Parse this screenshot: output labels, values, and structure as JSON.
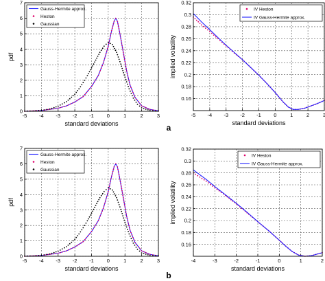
{
  "panel_labels": [
    "a",
    "b"
  ],
  "chart_data": [
    {
      "id": "a-pdf",
      "type": "line",
      "xlabel": "standard deviations",
      "ylabel": "pdf",
      "xlim": [
        -5,
        3
      ],
      "ylim": [
        0,
        7
      ],
      "xticks": [
        -5,
        -4,
        -3,
        -2,
        -1,
        0,
        1,
        2,
        3
      ],
      "yticks": [
        0,
        1,
        2,
        3,
        4,
        5,
        6,
        7
      ],
      "grid": true,
      "legend": {
        "position": "top-left",
        "entries": [
          "Gauss-Hermite approx.",
          "Heston",
          "Gaussian"
        ]
      },
      "series": [
        {
          "name": "Gauss-Hermite approx.",
          "style": "solid",
          "color": "#2020ff",
          "x": [
            -5,
            -4,
            -3,
            -2.5,
            -2,
            -1.5,
            -1,
            -0.6,
            -0.3,
            0,
            0.2,
            0.35,
            0.45,
            0.55,
            0.7,
            0.9,
            1.1,
            1.3,
            1.6,
            2,
            2.5,
            3
          ],
          "y": [
            0,
            0.05,
            0.2,
            0.35,
            0.6,
            0.95,
            1.6,
            2.3,
            3.1,
            4.2,
            5.2,
            5.8,
            6.0,
            5.8,
            5.0,
            3.8,
            2.6,
            1.7,
            0.9,
            0.35,
            0.12,
            0.03
          ]
        },
        {
          "name": "Heston",
          "style": "dots",
          "color": "#e0006a",
          "x": [
            -5,
            -4,
            -3,
            -2.5,
            -2,
            -1.5,
            -1,
            -0.6,
            -0.3,
            0,
            0.2,
            0.35,
            0.45,
            0.55,
            0.7,
            0.9,
            1.1,
            1.3,
            1.6,
            2,
            2.5,
            3
          ],
          "y": [
            0,
            0.05,
            0.2,
            0.35,
            0.6,
            0.95,
            1.6,
            2.3,
            3.1,
            4.2,
            5.2,
            5.8,
            6.0,
            5.8,
            5.0,
            3.8,
            2.6,
            1.7,
            0.9,
            0.35,
            0.12,
            0.03
          ]
        },
        {
          "name": "Gaussian",
          "style": "dots",
          "color": "#000000",
          "x": [
            -5,
            -4.5,
            -4,
            -3.5,
            -3,
            -2.5,
            -2,
            -1.75,
            -1.5,
            -1.25,
            -1,
            -0.75,
            -0.5,
            -0.25,
            0,
            0.25,
            0.5,
            0.75,
            1,
            1.25,
            1.5,
            1.75,
            2,
            2.5,
            3
          ],
          "y": [
            0.01,
            0.02,
            0.06,
            0.15,
            0.33,
            0.62,
            1.1,
            1.45,
            1.85,
            2.3,
            2.8,
            3.3,
            3.8,
            4.2,
            4.45,
            4.3,
            3.8,
            3.05,
            2.2,
            1.45,
            0.85,
            0.45,
            0.22,
            0.05,
            0.01
          ]
        }
      ]
    },
    {
      "id": "a-iv",
      "type": "line",
      "xlabel": "standard deviations",
      "ylabel": "implied volatility",
      "xlim": [
        -5,
        3
      ],
      "ylim": [
        0.14,
        0.32
      ],
      "xticks": [
        -5,
        -4,
        -3,
        -2,
        -1,
        0,
        1,
        2,
        3
      ],
      "yticks": [
        0.16,
        0.18,
        0.2,
        0.22,
        0.24,
        0.26,
        0.28,
        0.3,
        0.32
      ],
      "grid": true,
      "legend": {
        "position": "top-right",
        "entries": [
          "IV Heston",
          "IV Gauss-Hermite approx."
        ]
      },
      "series": [
        {
          "name": "IV Heston",
          "style": "dots",
          "color": "#e0006a",
          "x": [
            -5,
            -4.5,
            -4,
            -3.5,
            -3,
            -2.5,
            -2,
            -1.5,
            -1,
            -0.5,
            0,
            0.5,
            0.8,
            1.1,
            1.4,
            1.8,
            2.2,
            2.6,
            3
          ],
          "y": [
            0.296,
            0.283,
            0.272,
            0.26,
            0.248,
            0.236,
            0.225,
            0.212,
            0.199,
            0.185,
            0.17,
            0.154,
            0.146,
            0.142,
            0.142,
            0.144,
            0.148,
            0.152,
            0.157
          ]
        },
        {
          "name": "IV Gauss-Hermite approx.",
          "style": "solid",
          "color": "#2020ff",
          "x": [
            -5,
            -4.5,
            -4,
            -3.5,
            -3,
            -2.5,
            -2,
            -1.5,
            -1,
            -0.5,
            0,
            0.5,
            0.8,
            1.1,
            1.4,
            1.8,
            2.2,
            2.6,
            3
          ],
          "y": [
            0.302,
            0.288,
            0.275,
            0.262,
            0.249,
            0.237,
            0.225,
            0.212,
            0.199,
            0.185,
            0.17,
            0.154,
            0.146,
            0.142,
            0.142,
            0.144,
            0.148,
            0.152,
            0.157
          ]
        }
      ]
    },
    {
      "id": "b-pdf",
      "type": "line",
      "xlabel": "standard deviations",
      "ylabel": "pdf",
      "xlim": [
        -5,
        3
      ],
      "ylim": [
        0,
        7
      ],
      "xticks": [
        -5,
        -4,
        -3,
        -2,
        -1,
        0,
        1,
        2,
        3
      ],
      "yticks": [
        0,
        1,
        2,
        3,
        4,
        5,
        6,
        7
      ],
      "grid": true,
      "legend": {
        "position": "top-left",
        "entries": [
          "Gauss-Hermite approx.",
          "Heston",
          "Gaussian"
        ]
      },
      "series": [
        {
          "name": "Gauss-Hermite approx.",
          "style": "solid",
          "color": "#2020ff",
          "x": [
            -5,
            -4,
            -3,
            -2.5,
            -2,
            -1.5,
            -1,
            -0.6,
            -0.3,
            0,
            0.2,
            0.35,
            0.45,
            0.55,
            0.7,
            0.9,
            1.1,
            1.3,
            1.6,
            2,
            2.5,
            3
          ],
          "y": [
            0,
            0.05,
            0.2,
            0.35,
            0.6,
            0.95,
            1.6,
            2.3,
            3.1,
            4.2,
            5.2,
            5.8,
            6.0,
            5.8,
            5.0,
            3.8,
            2.6,
            1.7,
            0.9,
            0.35,
            0.12,
            0.03
          ]
        },
        {
          "name": "Heston",
          "style": "dots",
          "color": "#e0006a",
          "x": [
            -5,
            -4,
            -3,
            -2.5,
            -2,
            -1.5,
            -1,
            -0.6,
            -0.3,
            0,
            0.2,
            0.35,
            0.45,
            0.55,
            0.7,
            0.9,
            1.1,
            1.3,
            1.6,
            2,
            2.5,
            3
          ],
          "y": [
            0,
            0.05,
            0.2,
            0.35,
            0.6,
            0.95,
            1.6,
            2.3,
            3.1,
            4.2,
            5.2,
            5.8,
            6.0,
            5.8,
            5.0,
            3.8,
            2.6,
            1.7,
            0.9,
            0.35,
            0.12,
            0.03
          ]
        },
        {
          "name": "Gaussian",
          "style": "dots",
          "color": "#000000",
          "x": [
            -5,
            -4.5,
            -4,
            -3.5,
            -3,
            -2.5,
            -2,
            -1.75,
            -1.5,
            -1.25,
            -1,
            -0.75,
            -0.5,
            -0.25,
            0,
            0.25,
            0.5,
            0.75,
            1,
            1.25,
            1.5,
            1.75,
            2,
            2.5,
            3
          ],
          "y": [
            0.01,
            0.02,
            0.06,
            0.15,
            0.33,
            0.62,
            1.1,
            1.45,
            1.85,
            2.3,
            2.8,
            3.3,
            3.8,
            4.2,
            4.45,
            4.3,
            3.8,
            3.05,
            2.2,
            1.45,
            0.85,
            0.45,
            0.22,
            0.05,
            0.01
          ]
        }
      ]
    },
    {
      "id": "b-iv",
      "type": "line",
      "xlabel": "standard deviations",
      "ylabel": "implied volatility",
      "xlim": [
        -4,
        2
      ],
      "ylim": [
        0.14,
        0.32
      ],
      "xticks": [
        -4,
        -3,
        -2,
        -1,
        0,
        1,
        2
      ],
      "yticks": [
        0.16,
        0.18,
        0.2,
        0.22,
        0.24,
        0.26,
        0.28,
        0.3,
        0.32
      ],
      "grid": true,
      "legend": {
        "position": "top-right",
        "entries": [
          "IV Heston",
          "IV Gauss-Hermite approx."
        ]
      },
      "series": [
        {
          "name": "IV Heston",
          "style": "dots",
          "color": "#e0006a",
          "x": [
            -4,
            -3.7,
            -3.4,
            -3,
            -2.5,
            -2,
            -1.5,
            -1,
            -0.5,
            0,
            0.3,
            0.6,
            0.9,
            1.2,
            1.5,
            1.8,
            2
          ],
          "y": [
            0.28,
            0.273,
            0.266,
            0.255,
            0.242,
            0.228,
            0.213,
            0.198,
            0.183,
            0.167,
            0.157,
            0.148,
            0.142,
            0.14,
            0.141,
            0.144,
            0.146
          ]
        },
        {
          "name": "IV Gauss-Hermite approx.",
          "style": "solid",
          "color": "#2020ff",
          "x": [
            -4,
            -3.7,
            -3.4,
            -3,
            -2.5,
            -2,
            -1.5,
            -1,
            -0.5,
            0,
            0.3,
            0.6,
            0.9,
            1.2,
            1.5,
            1.8,
            2
          ],
          "y": [
            0.285,
            0.277,
            0.269,
            0.257,
            0.243,
            0.229,
            0.214,
            0.198,
            0.183,
            0.167,
            0.157,
            0.148,
            0.142,
            0.14,
            0.141,
            0.144,
            0.146
          ]
        }
      ]
    }
  ]
}
